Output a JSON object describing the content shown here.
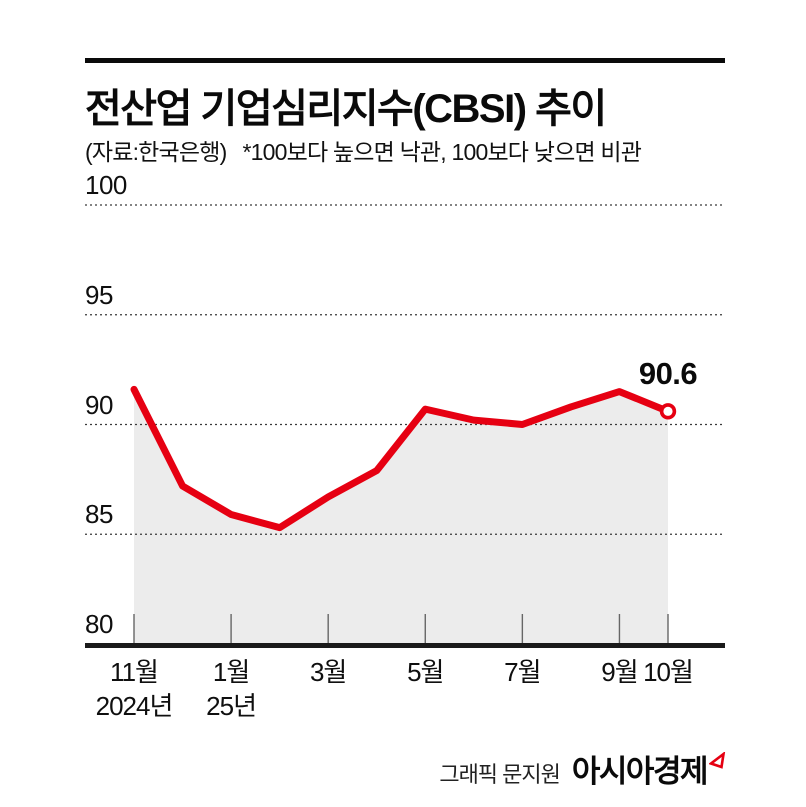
{
  "header": {
    "title": "전산업 기업심리지수(CBSI) 추이",
    "source": "(자료:한국은행)",
    "note": "*100보다 높으면 낙관, 100보다 낮으면 비관"
  },
  "chart_data": {
    "type": "line",
    "title": "전산업 기업심리지수(CBSI) 추이",
    "categories": [
      "2024-11",
      "2024-12",
      "2025-01",
      "2025-02",
      "2025-03",
      "2025-04",
      "2025-05",
      "2025-06",
      "2025-07",
      "2025-08",
      "2025-09",
      "2025-10"
    ],
    "values": [
      91.6,
      87.2,
      85.9,
      85.3,
      86.7,
      87.9,
      90.7,
      90.2,
      90.0,
      90.8,
      91.5,
      90.6
    ],
    "ylim": [
      80,
      101
    ],
    "ylabel": "",
    "xlabel": "",
    "grid": "dotted-horizontal",
    "legend": "none",
    "y_ticks": [
      {
        "label": "100",
        "value": 100
      },
      {
        "label": "95",
        "value": 95
      },
      {
        "label": "90",
        "value": 90
      },
      {
        "label": "85",
        "value": 85
      },
      {
        "label": "80",
        "value": 80
      }
    ],
    "x_tick_labels": [
      {
        "label": "11월",
        "sub": "2024년",
        "month_index": 0
      },
      {
        "label": "1월",
        "sub": "25년",
        "month_index": 2
      },
      {
        "label": "3월",
        "month_index": 4
      },
      {
        "label": "5월",
        "month_index": 6
      },
      {
        "label": "7월",
        "month_index": 8
      },
      {
        "label": "9월",
        "month_index": 10
      },
      {
        "label": "10월",
        "month_index": 11
      }
    ],
    "last_point": {
      "label": "90.6",
      "value": 90.6,
      "marker": "open-circle"
    },
    "line_color": "#e60012",
    "area_color": "#ececec"
  },
  "footer": {
    "credit": "그래픽 문지원",
    "brand": "아시아경제"
  }
}
